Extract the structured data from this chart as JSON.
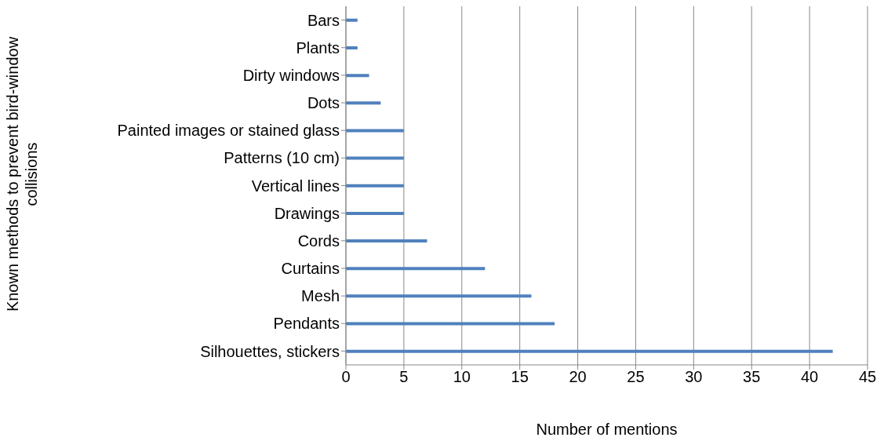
{
  "chart_data": {
    "type": "bar",
    "orientation": "horizontal",
    "ylabel": "Known methods to prevent bird-window collisions",
    "xlabel": "Number of mentions",
    "categories": [
      "Bars",
      "Plants",
      "Dirty windows",
      "Dots",
      "Painted images or stained glass",
      "Patterns (10 cm)",
      "Vertical lines",
      "Drawings",
      "Cords",
      "Curtains",
      "Mesh",
      "Pendants",
      "Silhouettes, stickers"
    ],
    "values": [
      1,
      1,
      2,
      3,
      5,
      5,
      5,
      5,
      7,
      12,
      16,
      18,
      42
    ],
    "color": "#4f81bd",
    "xlim": [
      0,
      45
    ],
    "xticks": [
      0,
      5,
      10,
      15,
      20,
      25,
      30,
      35,
      40,
      45
    ],
    "grid": "x",
    "legend": false
  }
}
